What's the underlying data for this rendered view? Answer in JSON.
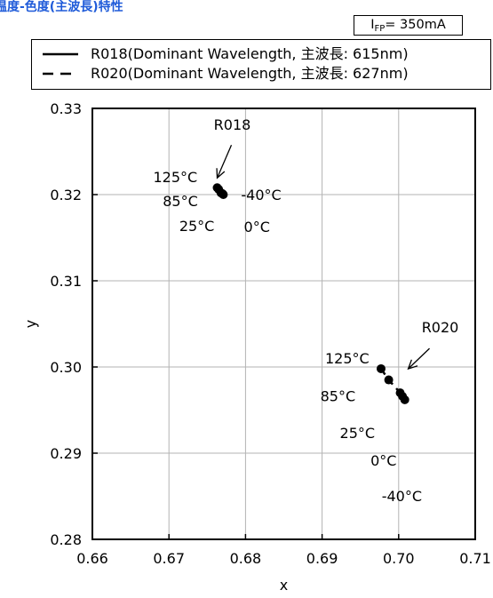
{
  "header": {
    "title": "温度-色度(主波長)特性",
    "condition_main": "I",
    "condition_sub": "FP",
    "condition_value": "= 350mA"
  },
  "legend": [
    {
      "label": "R018(Dominant Wavelength, 主波長: 615nm)",
      "line_style": "solid"
    },
    {
      "label": "R020(Dominant Wavelength, 主波長: 627nm)",
      "line_style": "dashed"
    }
  ],
  "chart_data": {
    "type": "scatter",
    "title": "温度-色度(主波長)特性",
    "xlabel": "x",
    "ylabel": "y",
    "xlim": [
      0.66,
      0.71
    ],
    "ylim": [
      0.28,
      0.33
    ],
    "x_ticks": [
      "0.66",
      "0.67",
      "0.68",
      "0.69",
      "0.70",
      "0.71"
    ],
    "y_ticks": [
      "0.28",
      "0.29",
      "0.30",
      "0.31",
      "0.32",
      "0.33"
    ],
    "grid": true,
    "colors": {
      "axis": "#000000",
      "grid": "#b3b3b3",
      "points": "#000000",
      "title": "#1f5bd9"
    },
    "series": [
      {
        "name": "R018",
        "line_style": "solid",
        "points": [
          {
            "temp": "125°C",
            "x": 0.6763,
            "y": 0.3208
          },
          {
            "temp": "85°C",
            "x": 0.6765,
            "y": 0.3206
          },
          {
            "temp": "25°C",
            "x": 0.6768,
            "y": 0.3202
          },
          {
            "temp": "0°C",
            "x": 0.677,
            "y": 0.3201
          },
          {
            "temp": "-40°C",
            "x": 0.6771,
            "y": 0.32
          }
        ]
      },
      {
        "name": "R020",
        "line_style": "dashed",
        "points": [
          {
            "temp": "125°C",
            "x": 0.6977,
            "y": 0.2998
          },
          {
            "temp": "85°C",
            "x": 0.6987,
            "y": 0.2985
          },
          {
            "temp": "25°C",
            "x": 0.7002,
            "y": 0.297
          },
          {
            "temp": "0°C",
            "x": 0.7005,
            "y": 0.2966
          },
          {
            "temp": "-40°C",
            "x": 0.7008,
            "y": 0.2962
          }
        ]
      }
    ],
    "annotations": [
      "R018",
      "R020"
    ]
  }
}
